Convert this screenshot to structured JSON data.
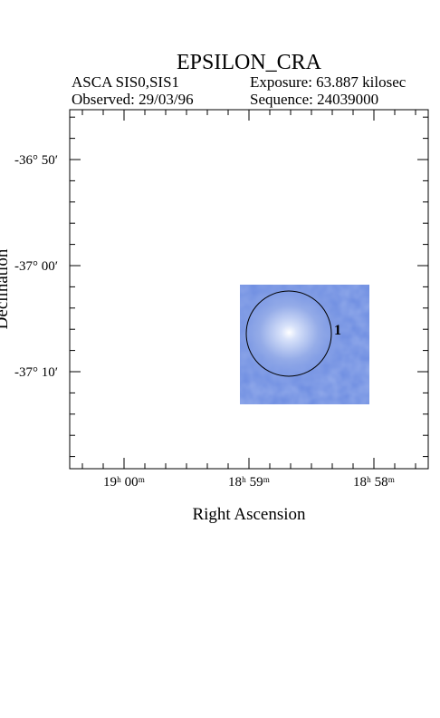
{
  "header": {
    "title": "EPSILON_CRA",
    "instrument": "ASCA SIS0,SIS1",
    "exposure": "Exposure: 63.887 kilosec",
    "observed": "Observed: 29/03/96",
    "sequence": "Sequence: 24039000"
  },
  "axes": {
    "x_label": "Right Ascension",
    "y_label": "Declination",
    "x_ticks": [
      "19ʰ 00ᵐ",
      "18ʰ 59ᵐ",
      "18ʰ 58ᵐ"
    ],
    "y_ticks": [
      "-36° 50′",
      "-37° 00′",
      "-37° 10′"
    ]
  },
  "sources": [
    {
      "label": "1"
    }
  ]
}
